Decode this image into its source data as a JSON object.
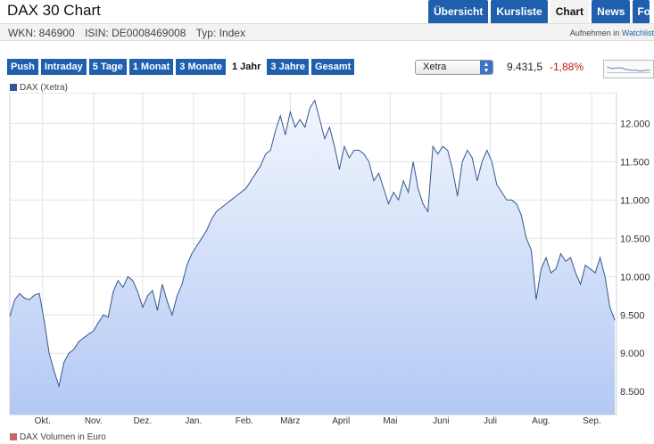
{
  "header": {
    "title": "DAX 30 Chart",
    "tabs": [
      {
        "label": "Übersicht",
        "active": false
      },
      {
        "label": "Kursliste",
        "active": false
      },
      {
        "label": "Chart",
        "active": true
      },
      {
        "label": "News",
        "active": false
      },
      {
        "label": "Fo",
        "active": false
      }
    ]
  },
  "info": {
    "wkn": "WKN: 846900",
    "isin": "ISIN: DE0008469008",
    "typ": "Typ: Index",
    "watchlist_prefix": "Aufnehmen in",
    "watchlist_link": "Watchlist"
  },
  "toolbar": {
    "ranges": [
      {
        "label": "Push",
        "active": false
      },
      {
        "label": "Intraday",
        "active": false
      },
      {
        "label": "5 Tage",
        "active": false
      },
      {
        "label": "1 Monat",
        "active": false
      },
      {
        "label": "3 Monate",
        "active": false
      },
      {
        "label": "1 Jahr",
        "active": true
      },
      {
        "label": "3 Jahre",
        "active": false
      },
      {
        "label": "Gesamt",
        "active": false
      }
    ],
    "exchange": "Xetra",
    "price": "9.431,5",
    "change": "-1,88%"
  },
  "legend": {
    "series": "DAX (Xetra)",
    "volume": "DAX Volumen in Euro"
  },
  "colors": {
    "line": "#35568e",
    "fill_top": "#f2f6fd",
    "fill_bottom": "#b3c9f4",
    "tab": "#1f5fae",
    "negative": "#c41a1a"
  },
  "chart_data": {
    "type": "area",
    "ylim": [
      8200,
      12400
    ],
    "yticks": [
      8500,
      9000,
      9500,
      10000,
      10500,
      11000,
      11500,
      12000
    ],
    "ytick_labels": [
      "8.500",
      "9.000",
      "9.500",
      "10.000",
      "10.500",
      "11.000",
      "11.500",
      "12.000"
    ],
    "xticks": [
      {
        "label": "Okt.",
        "x": 20
      },
      {
        "label": "Nov.",
        "x": 51
      },
      {
        "label": "Dez.",
        "x": 81
      },
      {
        "label": "Jan.",
        "x": 112
      },
      {
        "label": "Feb.",
        "x": 143
      },
      {
        "label": "März",
        "x": 171
      },
      {
        "label": "April",
        "x": 202
      },
      {
        "label": "Mai",
        "x": 232
      },
      {
        "label": "Juni",
        "x": 263
      },
      {
        "label": "Juli",
        "x": 293
      },
      {
        "label": "Aug.",
        "x": 324
      },
      {
        "label": "Sep.",
        "x": 355
      }
    ],
    "xlim": [
      0,
      370
    ],
    "x": [
      0,
      3,
      6,
      9,
      12,
      15,
      18,
      21,
      24,
      27,
      30,
      33,
      36,
      39,
      42,
      45,
      48,
      51,
      54,
      57,
      60,
      63,
      66,
      69,
      72,
      75,
      78,
      81,
      84,
      87,
      90,
      93,
      96,
      99,
      102,
      105,
      108,
      111,
      114,
      117,
      120,
      123,
      126,
      129,
      132,
      135,
      138,
      141,
      144,
      147,
      150,
      153,
      156,
      159,
      162,
      165,
      168,
      171,
      174,
      177,
      180,
      183,
      186,
      189,
      192,
      195,
      198,
      201,
      204,
      207,
      210,
      213,
      216,
      219,
      222,
      225,
      228,
      231,
      234,
      237,
      240,
      243,
      246,
      249,
      252,
      255,
      258,
      261,
      264,
      267,
      270,
      273,
      276,
      279,
      282,
      285,
      288,
      291,
      294,
      297,
      300,
      303,
      306,
      309,
      312,
      315,
      318,
      321,
      324,
      327,
      330,
      333,
      336,
      339,
      342,
      345,
      348,
      351,
      354,
      357,
      360,
      363,
      366,
      369
    ],
    "values": [
      9480,
      9700,
      9780,
      9720,
      9700,
      9760,
      9780,
      9420,
      9000,
      8770,
      8570,
      8880,
      9000,
      9050,
      9150,
      9200,
      9250,
      9290,
      9400,
      9500,
      9470,
      9800,
      9950,
      9860,
      10000,
      9950,
      9800,
      9600,
      9750,
      9820,
      9560,
      9900,
      9680,
      9500,
      9750,
      9900,
      10150,
      10300,
      10400,
      10500,
      10600,
      10750,
      10850,
      10900,
      10950,
      11000,
      11050,
      11100,
      11150,
      11250,
      11350,
      11450,
      11600,
      11650,
      11900,
      12100,
      11850,
      12150,
      11950,
      12050,
      11950,
      12200,
      12300,
      12050,
      11800,
      11950,
      11700,
      11400,
      11700,
      11550,
      11650,
      11650,
      11600,
      11500,
      11250,
      11350,
      11150,
      10950,
      11100,
      11000,
      11250,
      11100,
      11500,
      11150,
      10950,
      10850,
      11700,
      11600,
      11700,
      11650,
      11400,
      11050,
      11500,
      11650,
      11550,
      11250,
      11500,
      11650,
      11500,
      11200,
      11100,
      11000,
      11000,
      10950,
      10800,
      10500,
      10350,
      9700,
      10100,
      10250,
      10050,
      10100,
      10300,
      10200,
      10250,
      10050,
      9900,
      10150,
      10100,
      10050,
      10250,
      10000,
      9600,
      9430
    ]
  }
}
